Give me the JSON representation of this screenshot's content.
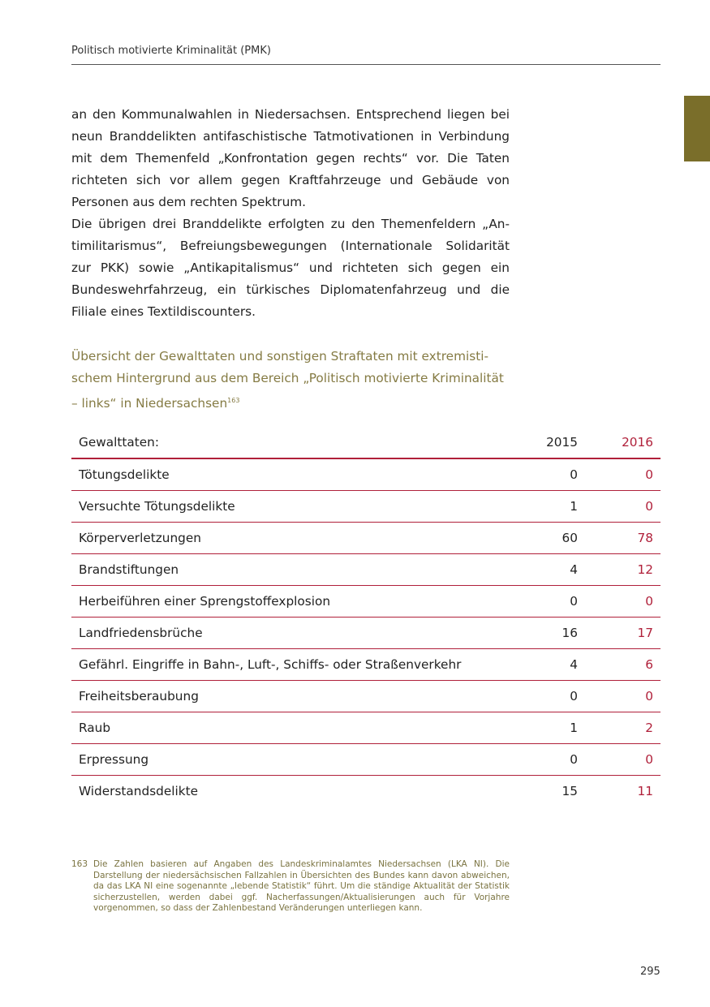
{
  "header": {
    "title": "Politisch motivierte Kriminalität (PMK)"
  },
  "body_lines": [
    "an den Kommunalwahlen in Niedersachsen. Entsprechend liegen bei",
    "neun Branddelikten antifaschistische Tatmotivationen in Verbindung",
    "mit dem Themenfeld „Konfrontation gegen rechts“ vor. Die Taten",
    "richteten sich vor allem gegen Kraftfahrzeuge und Gebäude von",
    "Personen aus dem rechten Spektrum.",
    "Die übrigen drei Branddelikte erfolgten zu den Themenfeldern „An-",
    "timilitarismus“, Befreiungsbewegungen (Internationale Solidarität",
    "zur PKK) sowie „Antikapitalismus“ und richteten sich gegen ein",
    "Bundeswehrfahrzeug, ein türkisches Diplomatenfahrzeug und die",
    "Filiale eines Textildiscounters."
  ],
  "table_title": {
    "lines": [
      "Übersicht der Gewalttaten und sonstigen Straftaten mit extremisti-",
      "schem Hintergrund aus dem Bereich „Politisch motivierte Kriminalität",
      "– links“ in Niedersachsen"
    ],
    "footnote_ref": "163"
  },
  "table": {
    "header": {
      "label": "Gewalttaten:",
      "col1": "2015",
      "col2": "2016"
    },
    "rows": [
      {
        "label": "Tötungsdelikte",
        "v2015": "0",
        "v2016": "0"
      },
      {
        "label": "Versuchte Tötungsdelikte",
        "v2015": "1",
        "v2016": "0"
      },
      {
        "label": "Körperverletzungen",
        "v2015": "60",
        "v2016": "78"
      },
      {
        "label": "Brandstiftungen",
        "v2015": "4",
        "v2016": "12"
      },
      {
        "label": "Herbeiführen einer Sprengstoffexplosion",
        "v2015": "0",
        "v2016": "0"
      },
      {
        "label": "Landfriedensbrüche",
        "v2015": "16",
        "v2016": "17"
      },
      {
        "label": "Gefährl. Eingriffe in Bahn-, Luft-, Schiffs- oder Straßenverkehr",
        "v2015": "4",
        "v2016": "6"
      },
      {
        "label": "Freiheitsberaubung",
        "v2015": "0",
        "v2016": "0"
      },
      {
        "label": "Raub",
        "v2015": "1",
        "v2016": "2"
      },
      {
        "label": "Erpressung",
        "v2015": "0",
        "v2016": "0"
      },
      {
        "label": "Widerstandsdelikte",
        "v2015": "15",
        "v2016": "11"
      }
    ]
  },
  "footnote": {
    "number": "163",
    "text": "Die Zahlen basieren auf Angaben des Landeskriminalamtes Niedersachsen (LKA NI). Die Darstellung der niedersächsischen Fallzahlen in Übersichten des Bundes kann davon abweichen, da das LKA NI eine sogenannte „lebende Statistik“ führt. Um die ständige Aktualität der Statistik sicherzustellen, werden dabei ggf. Nacherfassungen/Aktualisierungen auch für Vorjahre vorgenommen, so dass der Zahlenbestand Veränderungen unterliegen kann."
  },
  "page_number": "295",
  "colors": {
    "accent_red": "#b0203a",
    "olive": "#857b44",
    "side_tab": "#7a6e2a"
  }
}
